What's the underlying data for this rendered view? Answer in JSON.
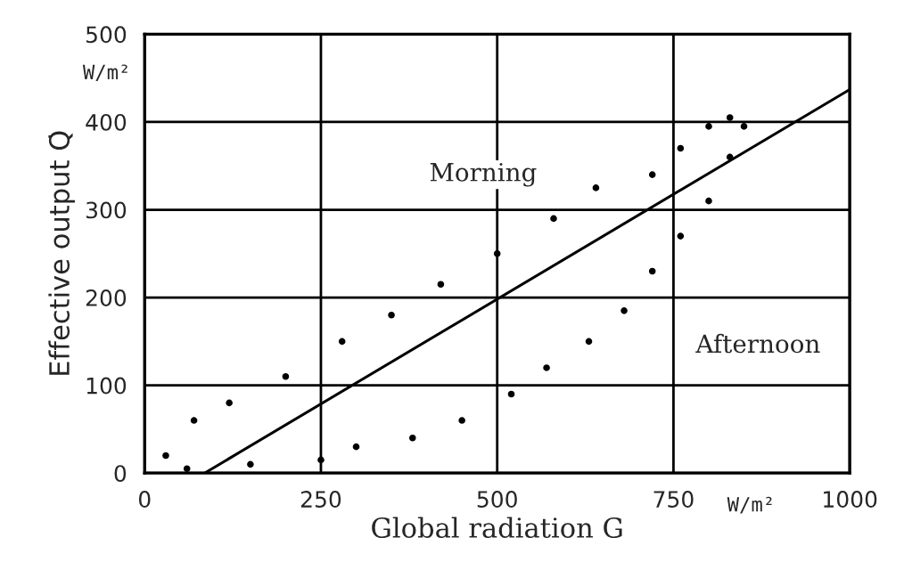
{
  "chart_data": {
    "type": "scatter",
    "xlabel": "Global radiation G",
    "ylabel": "Effective output Q̇",
    "xlim": [
      0,
      1000
    ],
    "ylim": [
      0,
      500
    ],
    "xticks": [
      0,
      250,
      500,
      750,
      1000
    ],
    "yticks": [
      0,
      100,
      200,
      300,
      400,
      500
    ],
    "grid": true,
    "annotations": [
      "Morning",
      "Afternoon",
      "W/m²",
      "W/m²"
    ],
    "series": [
      {
        "type": "line",
        "color": "#000000",
        "marker": "none",
        "line_style": "solid",
        "x": [
          85,
          1000
        ],
        "values": [
          0,
          437
        ]
      },
      {
        "color": "#000000",
        "marker": "circle",
        "x": [
          30,
          70,
          120,
          200,
          280,
          350,
          420,
          500,
          580,
          640,
          720,
          760,
          800,
          830
        ],
        "values": [
          20,
          60,
          80,
          110,
          150,
          180,
          215,
          250,
          290,
          325,
          340,
          370,
          395,
          405
        ]
      },
      {
        "color": "#000000",
        "marker": "circle",
        "x": [
          60,
          150,
          250,
          300,
          380,
          450,
          520,
          570,
          630,
          680,
          720,
          760,
          800,
          830,
          850
        ],
        "values": [
          5,
          10,
          15,
          30,
          40,
          60,
          90,
          120,
          150,
          185,
          230,
          270,
          310,
          360,
          395
        ]
      }
    ]
  }
}
